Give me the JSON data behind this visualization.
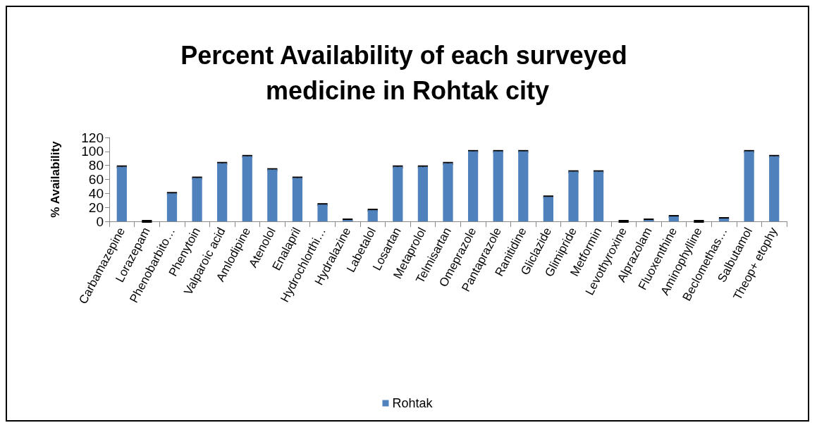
{
  "chart_data": {
    "type": "bar",
    "title": "Percent Availability of each surveyed medicine in Rohtak city",
    "ylabel": "% Availability",
    "categories": [
      "Carbamazepine",
      "Lorazepam",
      "Phenobarbito…",
      "Phenytoin",
      "Valparoic acid",
      "Amlodipine",
      "Atenolol",
      "Enalapril",
      "Hydrochlorthi…",
      "Hydralazine",
      "Labetalol",
      "Losartan",
      "Metaprolol",
      "Telmisartan",
      "Omeprazole",
      "Pantaprazole",
      "Ranitidine",
      "Gliclazide",
      "Glimipride",
      "Metformin",
      "Levothyroxine",
      "Alprazolam",
      "Fluoxenthine",
      "Aminophylline",
      "Beclomethas…",
      "Salbutamol",
      "Theop+ etophy"
    ],
    "series": [
      {
        "name": "Rohtak",
        "color": "#4f81bd",
        "values": [
          78,
          0,
          40,
          62,
          83,
          93,
          74,
          62,
          24,
          2,
          16,
          78,
          78,
          83,
          100,
          100,
          100,
          35,
          71,
          71,
          0,
          2,
          7,
          0,
          4,
          100,
          93
        ],
        "errors": [
          1,
          1,
          1,
          1,
          1,
          1,
          1,
          1,
          1,
          1,
          1,
          1,
          1,
          1,
          1,
          1,
          1,
          1,
          1,
          1,
          1,
          1,
          1,
          1,
          1,
          1,
          1
        ]
      }
    ],
    "ylim": [
      0,
      120
    ],
    "yticks": [
      0,
      20,
      40,
      60,
      80,
      100,
      120
    ],
    "grid": false,
    "legend": "bottom"
  }
}
